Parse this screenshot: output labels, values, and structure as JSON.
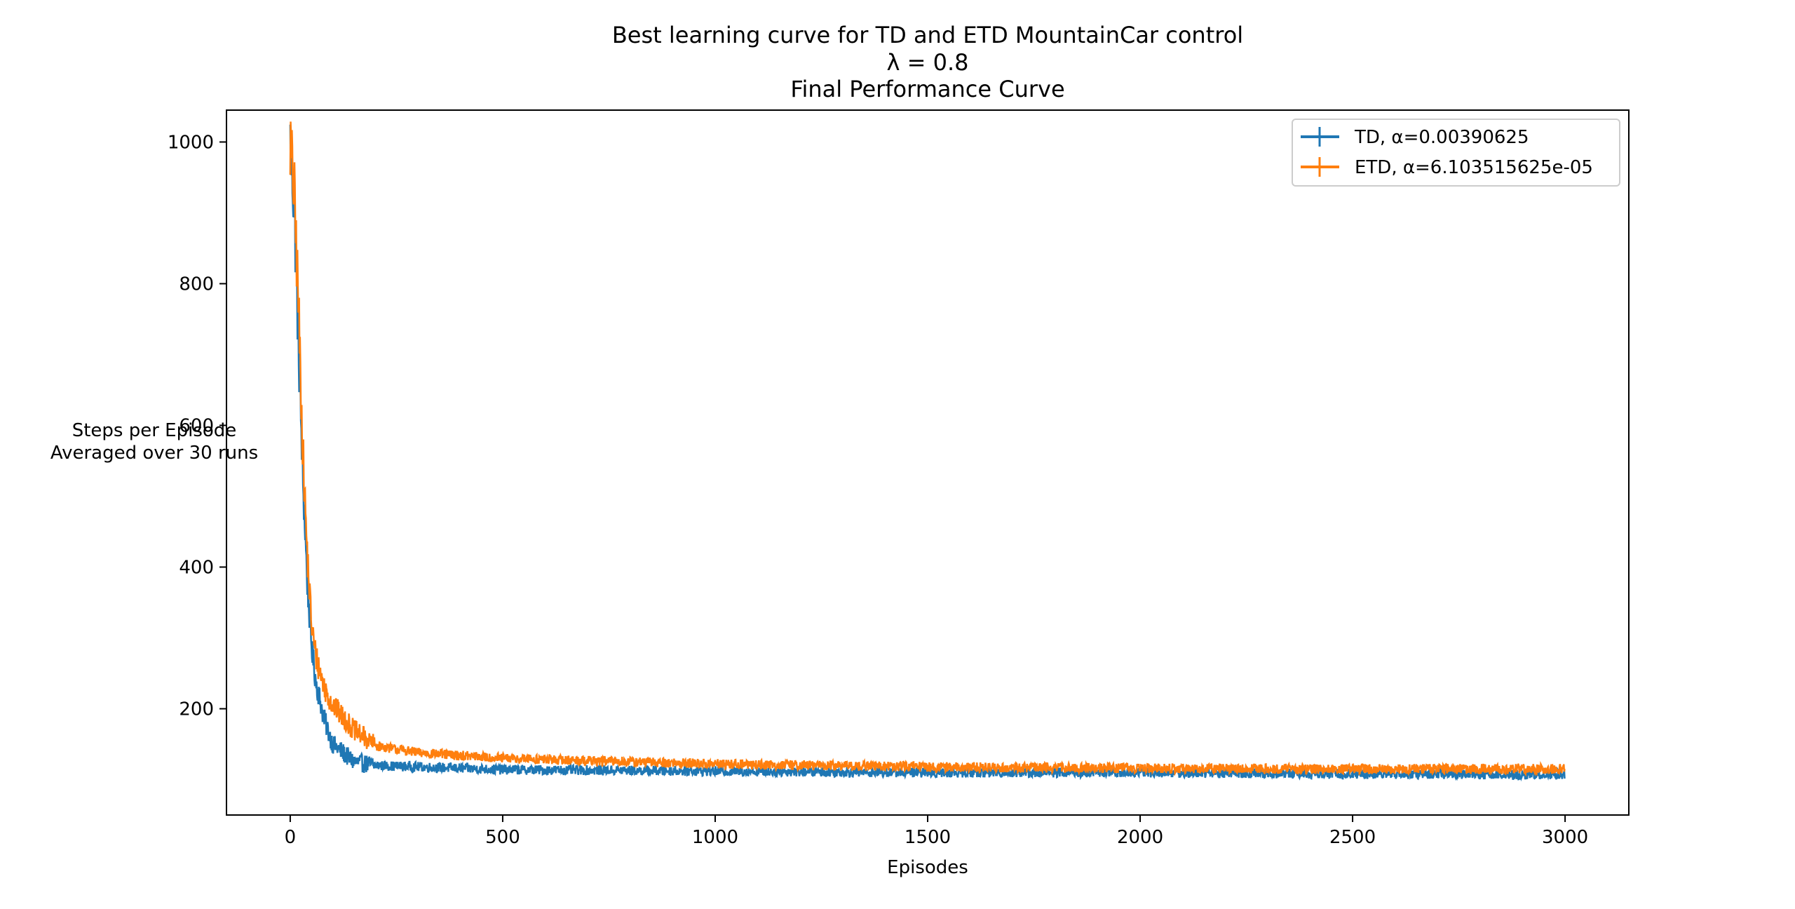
{
  "chart_data": {
    "type": "line",
    "title": "Best learning curve for TD and ETD MountainCar control",
    "subtitle": "λ = 0.8",
    "subtitle2": "Final Performance Curve",
    "xlabel": "Episodes",
    "ylabel_line1": "Steps per Episode",
    "ylabel_line2": "Averaged over 30 runs",
    "xlim": [
      -150,
      3150
    ],
    "ylim": [
      50,
      1045
    ],
    "x_ticks": [
      0,
      500,
      1000,
      1500,
      2000,
      2500,
      3000
    ],
    "y_ticks": [
      200,
      400,
      600,
      800,
      1000
    ],
    "grid": false,
    "legend_position": "top-right",
    "n_episodes": 3000,
    "series": [
      {
        "name": "TD, α=0.00390625",
        "color": "#1f77b4",
        "curve_points": [
          [
            0,
            1000
          ],
          [
            10,
            900
          ],
          [
            20,
            700
          ],
          [
            30,
            520
          ],
          [
            40,
            380
          ],
          [
            50,
            290
          ],
          [
            60,
            240
          ],
          [
            80,
            185
          ],
          [
            100,
            150
          ],
          [
            150,
            125
          ],
          [
            200,
            120
          ],
          [
            300,
            118
          ],
          [
            500,
            114
          ],
          [
            1000,
            112
          ],
          [
            1500,
            110
          ],
          [
            2000,
            110
          ],
          [
            2500,
            108
          ],
          [
            3000,
            107
          ]
        ],
        "noise": 7
      },
      {
        "name": "ETD, α=6.103515625e-05",
        "color": "#ff7f0e",
        "curve_points": [
          [
            0,
            1000
          ],
          [
            10,
            920
          ],
          [
            20,
            760
          ],
          [
            30,
            560
          ],
          [
            40,
            420
          ],
          [
            50,
            320
          ],
          [
            60,
            275
          ],
          [
            80,
            230
          ],
          [
            100,
            205
          ],
          [
            150,
            170
          ],
          [
            200,
            148
          ],
          [
            300,
            138
          ],
          [
            500,
            130
          ],
          [
            1000,
            122
          ],
          [
            1500,
            118
          ],
          [
            2000,
            116
          ],
          [
            2500,
            115
          ],
          [
            3000,
            115
          ]
        ],
        "noise": 7
      }
    ]
  }
}
